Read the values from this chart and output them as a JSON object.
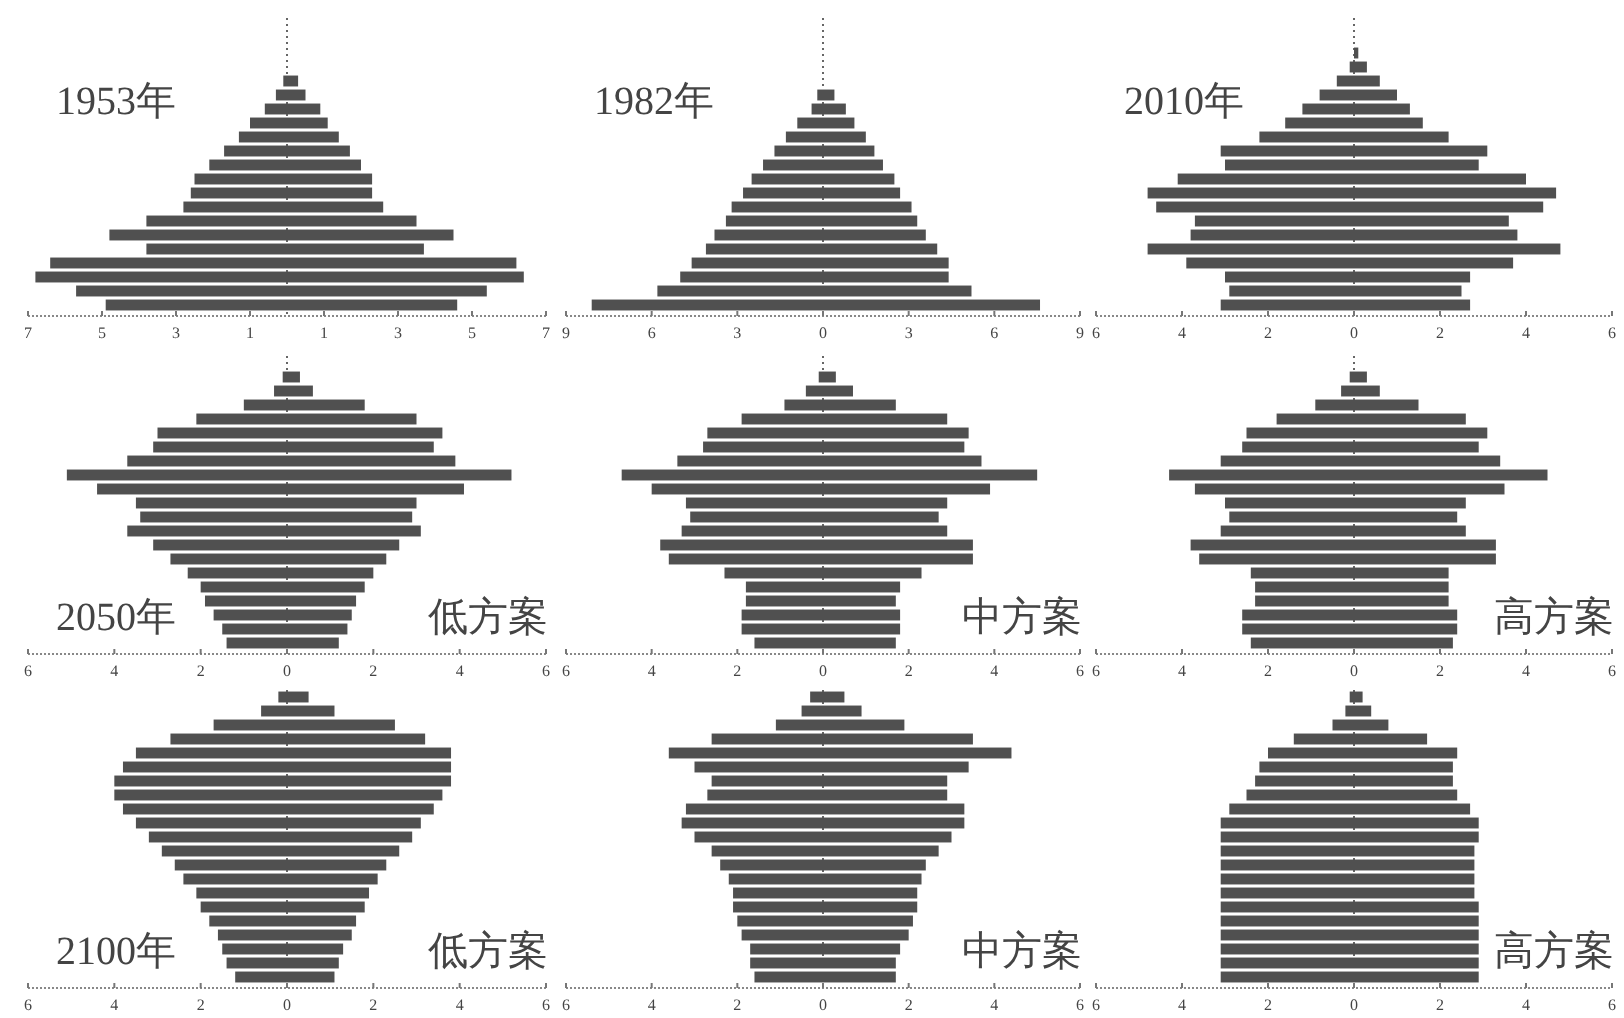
{
  "chart_data": [
    {
      "type": "bar",
      "orientation": "horizontal",
      "stacked": true,
      "title": "1953年",
      "categories": [
        null,
        null,
        null,
        null,
        null,
        null,
        null,
        null,
        null,
        null,
        null,
        null,
        null,
        null,
        null,
        null,
        null,
        null,
        null,
        null,
        null
      ],
      "xlim": [
        -7,
        7
      ],
      "xticks": [
        {
          "value": -7,
          "label": "7"
        },
        {
          "value": -5,
          "label": "5"
        },
        {
          "value": -3,
          "label": "3"
        },
        {
          "value": -1,
          "label": "1"
        },
        1,
        3,
        5,
        7
      ],
      "ref_lines": [
        {
          "axis": "x",
          "value": 0,
          "line_style": "dotted",
          "color": "#666666"
        }
      ],
      "series": [
        {
          "color": "#505050",
          "values": [
            null,
            null,
            null,
            null,
            -0.1,
            -0.3,
            -0.6,
            -1.0,
            -1.3,
            -1.7,
            -2.1,
            -2.5,
            -2.6,
            -2.8,
            -3.8,
            -4.8,
            -3.8,
            -6.4,
            -6.8,
            -5.7,
            -4.9
          ]
        },
        {
          "color": "#505050",
          "values": [
            null,
            null,
            null,
            null,
            0.3,
            0.5,
            0.9,
            1.1,
            1.4,
            1.7,
            2.0,
            2.3,
            2.3,
            2.6,
            3.5,
            4.5,
            3.7,
            6.2,
            6.4,
            5.4,
            4.6
          ]
        }
      ]
    },
    {
      "type": "bar",
      "orientation": "horizontal",
      "stacked": true,
      "title": "1982年",
      "categories": [
        null,
        null,
        null,
        null,
        null,
        null,
        null,
        null,
        null,
        null,
        null,
        null,
        null,
        null,
        null,
        null,
        null,
        null,
        null,
        null,
        null
      ],
      "xlim": [
        -9,
        9
      ],
      "xticks": [
        {
          "value": -9,
          "label": "9"
        },
        {
          "value": -6,
          "label": "6"
        },
        {
          "value": -3,
          "label": "3"
        },
        0,
        3,
        6,
        9
      ],
      "ref_lines": [
        {
          "axis": "x",
          "value": 0,
          "line_style": "dotted",
          "color": "#666666"
        }
      ],
      "series": [
        {
          "color": "#505050",
          "values": [
            null,
            null,
            null,
            null,
            null,
            -0.2,
            -0.4,
            -0.9,
            -1.3,
            -1.7,
            -2.1,
            -2.5,
            -2.8,
            -3.2,
            -3.4,
            -3.8,
            -4.1,
            -4.6,
            -5.0,
            -5.8,
            -8.1
          ]
        },
        {
          "color": "#505050",
          "values": [
            null,
            null,
            null,
            null,
            null,
            0.4,
            0.8,
            1.1,
            1.5,
            1.8,
            2.1,
            2.5,
            2.7,
            3.1,
            3.3,
            3.6,
            4.0,
            4.4,
            4.4,
            5.2,
            7.6
          ]
        }
      ]
    },
    {
      "type": "bar",
      "orientation": "horizontal",
      "stacked": true,
      "title": "2010年",
      "categories": [
        null,
        null,
        null,
        null,
        null,
        null,
        null,
        null,
        null,
        null,
        null,
        null,
        null,
        null,
        null,
        null,
        null,
        null,
        null,
        null,
        null
      ],
      "xlim": [
        -6,
        6
      ],
      "xticks": [
        {
          "value": -6,
          "label": "6"
        },
        {
          "value": -4,
          "label": "4"
        },
        {
          "value": -2,
          "label": "2"
        },
        0,
        2,
        4,
        6
      ],
      "ref_lines": [
        {
          "axis": "x",
          "value": 0,
          "line_style": "dotted",
          "color": "#666666"
        }
      ],
      "series": [
        {
          "color": "#505050",
          "values": [
            null,
            null,
            null,
            -0.1,
            -0.4,
            -0.8,
            -1.2,
            -1.6,
            -2.2,
            -3.1,
            -3.0,
            -4.1,
            -4.8,
            -4.6,
            -3.7,
            -3.8,
            -4.8,
            -3.9,
            -3.0,
            -2.9,
            -3.1
          ]
        },
        {
          "color": "#505050",
          "values": [
            null,
            null,
            0.1,
            0.3,
            0.6,
            1.0,
            1.3,
            1.6,
            2.2,
            3.1,
            2.9,
            4.0,
            4.7,
            4.4,
            3.6,
            3.8,
            4.8,
            3.7,
            2.7,
            2.5,
            2.7
          ]
        }
      ]
    },
    {
      "type": "bar",
      "orientation": "horizontal",
      "stacked": true,
      "title": "2050年",
      "subtitle": "低方案",
      "categories": [
        null,
        null,
        null,
        null,
        null,
        null,
        null,
        null,
        null,
        null,
        null,
        null,
        null,
        null,
        null,
        null,
        null,
        null,
        null,
        null,
        null
      ],
      "xlim": [
        -6,
        6
      ],
      "xticks": [
        {
          "value": -6,
          "label": "6"
        },
        {
          "value": -4,
          "label": "4"
        },
        {
          "value": -2,
          "label": "2"
        },
        0,
        2,
        4,
        6
      ],
      "ref_lines": [
        {
          "axis": "x",
          "value": 0,
          "line_style": "dotted",
          "color": "#666666"
        }
      ],
      "series": [
        {
          "color": "#505050",
          "values": [
            null,
            -0.1,
            -0.3,
            -1.0,
            -2.1,
            -3.0,
            -3.1,
            -3.7,
            -5.1,
            -4.4,
            -3.5,
            -3.4,
            -3.7,
            -3.1,
            -2.7,
            -2.3,
            -2.0,
            -1.9,
            -1.7,
            -1.5,
            -1.4
          ]
        },
        {
          "color": "#505050",
          "values": [
            null,
            0.3,
            0.6,
            1.8,
            3.0,
            3.6,
            3.4,
            3.9,
            5.2,
            4.1,
            3.0,
            2.9,
            3.1,
            2.6,
            2.3,
            2.0,
            1.8,
            1.6,
            1.5,
            1.4,
            1.2
          ]
        }
      ]
    },
    {
      "type": "bar",
      "orientation": "horizontal",
      "stacked": true,
      "subtitle": "中方案",
      "categories": [
        null,
        null,
        null,
        null,
        null,
        null,
        null,
        null,
        null,
        null,
        null,
        null,
        null,
        null,
        null,
        null,
        null,
        null,
        null,
        null,
        null
      ],
      "xlim": [
        -6,
        6
      ],
      "xticks": [
        {
          "value": -6,
          "label": "6"
        },
        {
          "value": -4,
          "label": "4"
        },
        {
          "value": -2,
          "label": "2"
        },
        0,
        2,
        4,
        6
      ],
      "ref_lines": [
        {
          "axis": "x",
          "value": 0,
          "line_style": "dotted",
          "color": "#666666"
        }
      ],
      "series": [
        {
          "color": "#505050",
          "values": [
            null,
            -0.1,
            -0.4,
            -0.9,
            -1.9,
            -2.7,
            -2.8,
            -3.4,
            -4.7,
            -4.0,
            -3.2,
            -3.1,
            -3.3,
            -3.8,
            -3.6,
            -2.3,
            -1.8,
            -1.8,
            -1.9,
            -1.9,
            -1.6
          ]
        },
        {
          "color": "#505050",
          "values": [
            null,
            0.3,
            0.7,
            1.7,
            2.9,
            3.4,
            3.3,
            3.7,
            5.0,
            3.9,
            2.9,
            2.7,
            2.9,
            3.5,
            3.5,
            2.3,
            1.8,
            1.7,
            1.8,
            1.8,
            1.7
          ]
        }
      ]
    },
    {
      "type": "bar",
      "orientation": "horizontal",
      "stacked": true,
      "subtitle": "高方案",
      "categories": [
        null,
        null,
        null,
        null,
        null,
        null,
        null,
        null,
        null,
        null,
        null,
        null,
        null,
        null,
        null,
        null,
        null,
        null,
        null,
        null,
        null
      ],
      "xlim": [
        -6,
        6
      ],
      "xticks": [
        {
          "value": -6,
          "label": "6"
        },
        {
          "value": -4,
          "label": "4"
        },
        {
          "value": -2,
          "label": "2"
        },
        0,
        2,
        4,
        6
      ],
      "ref_lines": [
        {
          "axis": "x",
          "value": 0,
          "line_style": "dotted",
          "color": "#666666"
        }
      ],
      "series": [
        {
          "color": "#505050",
          "values": [
            null,
            -0.1,
            -0.3,
            -0.9,
            -1.8,
            -2.5,
            -2.6,
            -3.1,
            -4.3,
            -3.7,
            -3.0,
            -2.9,
            -3.1,
            -3.8,
            -3.6,
            -2.4,
            -2.3,
            -2.3,
            -2.6,
            -2.6,
            -2.4
          ]
        },
        {
          "color": "#505050",
          "values": [
            null,
            0.3,
            0.6,
            1.5,
            2.6,
            3.1,
            2.9,
            3.4,
            4.5,
            3.5,
            2.6,
            2.4,
            2.6,
            3.3,
            3.3,
            2.2,
            2.2,
            2.2,
            2.4,
            2.4,
            2.3
          ]
        }
      ]
    },
    {
      "type": "bar",
      "orientation": "horizontal",
      "stacked": true,
      "title": "2100年",
      "subtitle": "低方案",
      "categories": [
        null,
        null,
        null,
        null,
        null,
        null,
        null,
        null,
        null,
        null,
        null,
        null,
        null,
        null,
        null,
        null,
        null,
        null,
        null,
        null,
        null
      ],
      "xlim": [
        -6,
        6
      ],
      "xticks": [
        {
          "value": -6,
          "label": "6"
        },
        {
          "value": -4,
          "label": "4"
        },
        {
          "value": -2,
          "label": "2"
        },
        0,
        2,
        4,
        6
      ],
      "ref_lines": [
        {
          "axis": "x",
          "value": 0,
          "line_style": "dotted",
          "color": "#666666"
        }
      ],
      "series": [
        {
          "color": "#505050",
          "values": [
            -0.2,
            -0.6,
            -1.7,
            -2.7,
            -3.5,
            -3.8,
            -4.0,
            -4.0,
            -3.8,
            -3.5,
            -3.2,
            -2.9,
            -2.6,
            -2.4,
            -2.1,
            -2.0,
            -1.8,
            -1.6,
            -1.5,
            -1.4,
            -1.2
          ]
        },
        {
          "color": "#505050",
          "values": [
            0.5,
            1.1,
            2.5,
            3.2,
            3.8,
            3.8,
            3.8,
            3.6,
            3.4,
            3.1,
            2.9,
            2.6,
            2.3,
            2.1,
            1.9,
            1.8,
            1.6,
            1.5,
            1.3,
            1.2,
            1.1
          ]
        }
      ]
    },
    {
      "type": "bar",
      "orientation": "horizontal",
      "stacked": true,
      "subtitle": "中方案",
      "categories": [
        null,
        null,
        null,
        null,
        null,
        null,
        null,
        null,
        null,
        null,
        null,
        null,
        null,
        null,
        null,
        null,
        null,
        null,
        null,
        null,
        null
      ],
      "xlim": [
        -6,
        6
      ],
      "xticks": [
        {
          "value": -6,
          "label": "6"
        },
        {
          "value": -4,
          "label": "4"
        },
        {
          "value": -2,
          "label": "2"
        },
        0,
        2,
        4,
        6
      ],
      "ref_lines": [
        {
          "axis": "x",
          "value": 0,
          "line_style": "dotted",
          "color": "#666666"
        }
      ],
      "series": [
        {
          "color": "#505050",
          "values": [
            -0.3,
            -0.5,
            -1.1,
            -2.6,
            -3.6,
            -3.0,
            -2.6,
            -2.7,
            -3.2,
            -3.3,
            -3.0,
            -2.6,
            -2.4,
            -2.2,
            -2.1,
            -2.1,
            -2.0,
            -1.9,
            -1.7,
            -1.7,
            -1.6
          ]
        },
        {
          "color": "#505050",
          "values": [
            0.5,
            0.9,
            1.9,
            3.5,
            4.4,
            3.4,
            2.9,
            2.9,
            3.3,
            3.3,
            3.0,
            2.7,
            2.4,
            2.3,
            2.2,
            2.2,
            2.1,
            2.0,
            1.8,
            1.7,
            1.7
          ]
        }
      ]
    },
    {
      "type": "bar",
      "orientation": "horizontal",
      "stacked": true,
      "subtitle": "高方案",
      "categories": [
        null,
        null,
        null,
        null,
        null,
        null,
        null,
        null,
        null,
        null,
        null,
        null,
        null,
        null,
        null,
        null,
        null,
        null,
        null,
        null,
        null
      ],
      "xlim": [
        -6,
        6
      ],
      "xticks": [
        {
          "value": -6,
          "label": "6"
        },
        {
          "value": -4,
          "label": "4"
        },
        {
          "value": -2,
          "label": "2"
        },
        0,
        2,
        4,
        6
      ],
      "ref_lines": [
        {
          "axis": "x",
          "value": 0,
          "line_style": "dotted",
          "color": "#666666"
        }
      ],
      "series": [
        {
          "color": "#505050",
          "values": [
            -0.1,
            -0.2,
            -0.5,
            -1.4,
            -2.0,
            -2.2,
            -2.3,
            -2.5,
            -2.9,
            -3.1,
            -3.1,
            -3.1,
            -3.1,
            -3.1,
            -3.1,
            -3.1,
            -3.1,
            -3.1,
            -3.1,
            -3.1,
            -3.1
          ]
        },
        {
          "color": "#505050",
          "values": [
            0.2,
            0.4,
            0.8,
            1.7,
            2.4,
            2.3,
            2.3,
            2.4,
            2.7,
            2.9,
            2.9,
            2.8,
            2.8,
            2.8,
            2.8,
            2.9,
            2.9,
            2.9,
            2.9,
            2.9,
            2.9
          ]
        }
      ]
    }
  ]
}
